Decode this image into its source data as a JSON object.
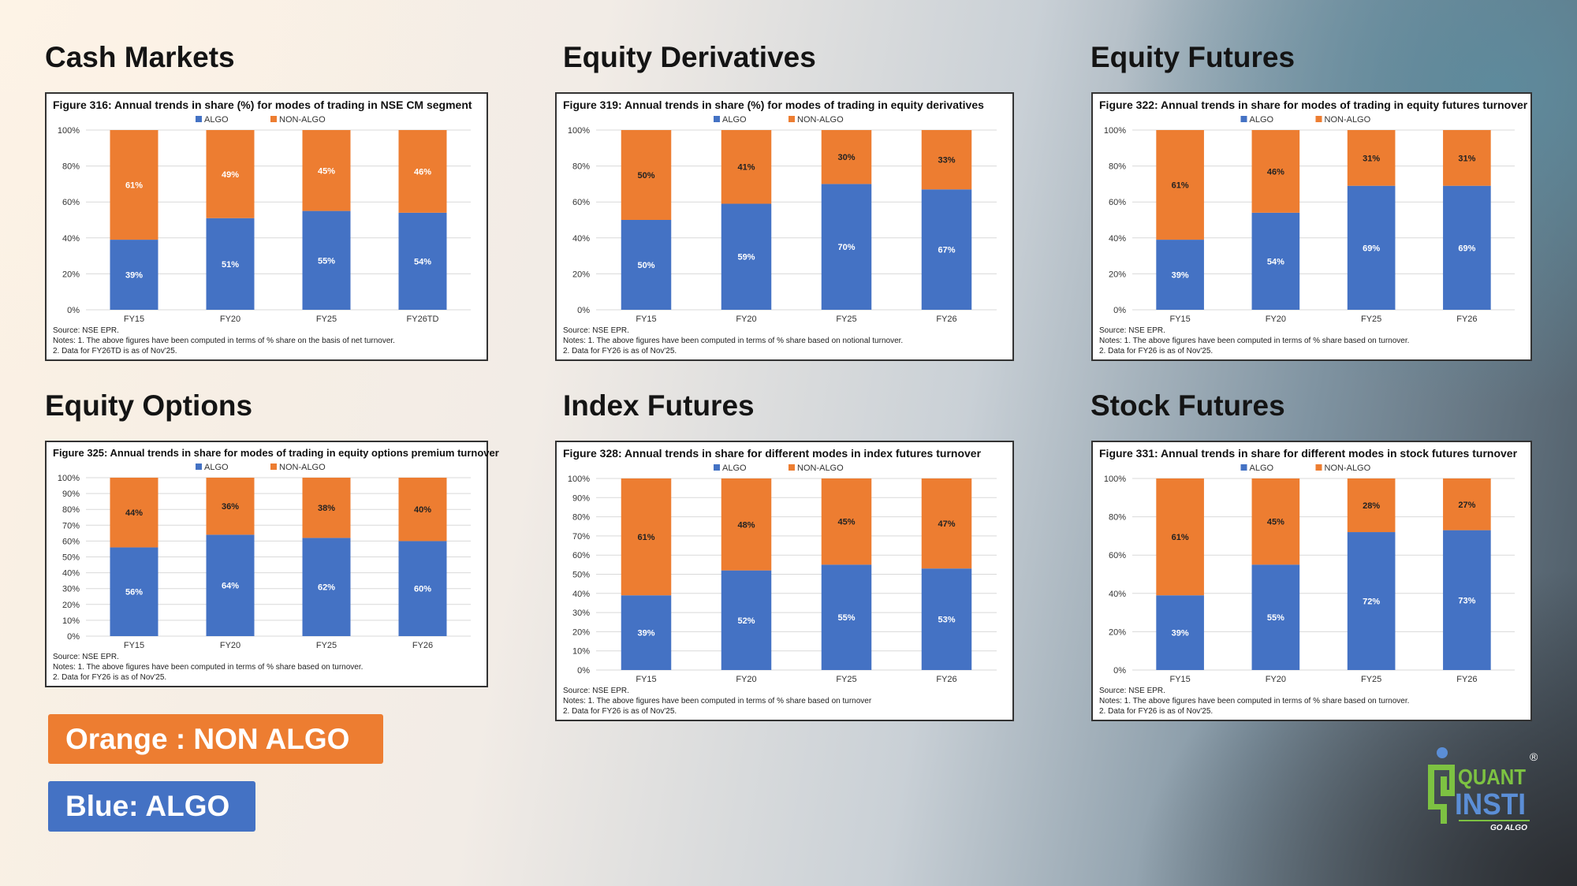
{
  "colors": {
    "algo": "#4472c4",
    "non_algo": "#ed7d31"
  },
  "key": {
    "orange": "Orange : NON ALGO",
    "blue": "Blue: ALGO"
  },
  "logo": {
    "text_top": "QUANT",
    "text_bottom": "INSTI",
    "tagline": "GO ALGO",
    "mark": "®"
  },
  "chart_data": [
    {
      "type": "bar",
      "stacked": true,
      "heading": "Cash Markets",
      "title": "Figure 316: Annual trends in share (%) for modes of trading in NSE CM segment",
      "legend": [
        "ALGO",
        "NON-ALGO"
      ],
      "legend_position": "top",
      "categories": [
        "FY15",
        "FY20",
        "FY25",
        "FY26TD"
      ],
      "series": [
        {
          "name": "ALGO",
          "values": [
            39,
            51,
            55,
            54
          ]
        },
        {
          "name": "NON-ALGO",
          "values": [
            61,
            49,
            45,
            46
          ]
        }
      ],
      "ylim": [
        0,
        100
      ],
      "yticks": [
        "0%",
        "20%",
        "40%",
        "60%",
        "80%",
        "100%"
      ],
      "grid": true,
      "source": "Source: NSE EPR.",
      "notes": [
        "Notes: 1. The above figures have been computed in terms of % share on the basis of net turnover.",
        "2. Data for FY26TD is as of Nov'25."
      ]
    },
    {
      "type": "bar",
      "stacked": true,
      "heading": "Equity Derivatives",
      "title": "Figure 319: Annual trends in share (%) for modes of trading in equity derivatives",
      "legend": [
        "ALGO",
        "NON-ALGO"
      ],
      "legend_position": "top",
      "categories": [
        "FY15",
        "FY20",
        "FY25",
        "FY26"
      ],
      "series": [
        {
          "name": "ALGO",
          "values": [
            50,
            59,
            70,
            67
          ]
        },
        {
          "name": "NON-ALGO",
          "values": [
            50,
            41,
            30,
            33
          ]
        }
      ],
      "ylim": [
        0,
        100
      ],
      "yticks": [
        "0%",
        "20%",
        "40%",
        "60%",
        "80%",
        "100%"
      ],
      "grid": true,
      "source": "Source: NSE EPR.",
      "notes": [
        "Notes: 1. The above figures have been computed in terms of % share based on notional turnover.",
        "2. Data for FY26 is as of Nov'25."
      ]
    },
    {
      "type": "bar",
      "stacked": true,
      "heading": "Equity Futures",
      "title": "Figure 322: Annual trends in share for modes of trading in equity futures turnover",
      "legend": [
        "ALGO",
        "NON-ALGO"
      ],
      "legend_position": "top",
      "categories": [
        "FY15",
        "FY20",
        "FY25",
        "FY26"
      ],
      "series": [
        {
          "name": "ALGO",
          "values": [
            39,
            54,
            69,
            69
          ]
        },
        {
          "name": "NON-ALGO",
          "values": [
            61,
            46,
            31,
            31
          ]
        }
      ],
      "ylim": [
        0,
        100
      ],
      "yticks": [
        "0%",
        "20%",
        "40%",
        "60%",
        "80%",
        "100%"
      ],
      "grid": true,
      "source": "Source: NSE EPR.",
      "notes": [
        "Notes: 1. The above figures have been computed in terms of % share based on turnover.",
        "2. Data for FY26 is as of Nov'25."
      ]
    },
    {
      "type": "bar",
      "stacked": true,
      "heading": "Equity Options",
      "title": "Figure 325: Annual trends in share for modes of trading in equity options premium turnover",
      "legend": [
        "ALGO",
        "NON-ALGO"
      ],
      "legend_position": "top",
      "categories": [
        "FY15",
        "FY20",
        "FY25",
        "FY26"
      ],
      "series": [
        {
          "name": "ALGO",
          "values": [
            56,
            64,
            62,
            60
          ]
        },
        {
          "name": "NON-ALGO",
          "values": [
            44,
            36,
            38,
            40
          ]
        }
      ],
      "ylim": [
        0,
        100
      ],
      "yticks": [
        "0%",
        "10%",
        "20%",
        "30%",
        "40%",
        "50%",
        "60%",
        "70%",
        "80%",
        "90%",
        "100%"
      ],
      "grid": true,
      "source": "Source: NSE EPR.",
      "notes": [
        "Notes: 1. The above figures have been computed in terms of % share based on turnover.",
        "2. Data for FY26 is as of Nov'25."
      ]
    },
    {
      "type": "bar",
      "stacked": true,
      "heading": "Index Futures",
      "title": "Figure 328: Annual trends in share for different modes in index futures turnover",
      "legend": [
        "ALGO",
        "NON-ALGO"
      ],
      "legend_position": "top",
      "categories": [
        "FY15",
        "FY20",
        "FY25",
        "FY26"
      ],
      "series": [
        {
          "name": "ALGO",
          "values": [
            39,
            52,
            55,
            53
          ]
        },
        {
          "name": "NON-ALGO",
          "values": [
            61,
            48,
            45,
            47
          ]
        }
      ],
      "ylim": [
        0,
        100
      ],
      "yticks": [
        "0%",
        "10%",
        "20%",
        "30%",
        "40%",
        "50%",
        "60%",
        "70%",
        "80%",
        "90%",
        "100%"
      ],
      "grid": true,
      "source": "Source: NSE EPR.",
      "notes": [
        "Notes: 1. The above figures have been computed in terms of % share based on turnover",
        "2. Data for FY26 is as of Nov'25."
      ]
    },
    {
      "type": "bar",
      "stacked": true,
      "heading": "Stock Futures",
      "title": "Figure 331: Annual trends in share for different modes in stock futures turnover",
      "legend": [
        "ALGO",
        "NON-ALGO"
      ],
      "legend_position": "top",
      "categories": [
        "FY15",
        "FY20",
        "FY25",
        "FY26"
      ],
      "series": [
        {
          "name": "ALGO",
          "values": [
            39,
            55,
            72,
            73
          ]
        },
        {
          "name": "NON-ALGO",
          "values": [
            61,
            45,
            28,
            27
          ]
        }
      ],
      "ylim": [
        0,
        100
      ],
      "yticks": [
        "0%",
        "20%",
        "40%",
        "60%",
        "80%",
        "100%"
      ],
      "grid": true,
      "source": "Source: NSE EPR.",
      "notes": [
        "Notes: 1. The above figures have been computed in terms of % share based on turnover.",
        "2. Data for FY26 is as of Nov'25."
      ]
    }
  ]
}
